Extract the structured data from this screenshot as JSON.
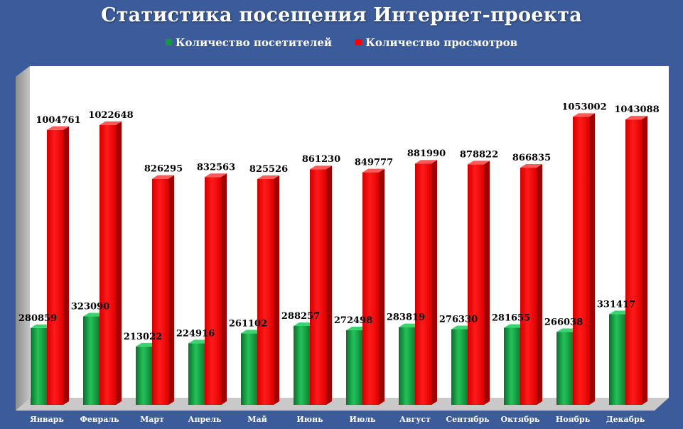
{
  "chart_data": {
    "type": "bar",
    "title": "Статистика посещения Интернет-проекта",
    "categories": [
      "Январь",
      "Февраль",
      "Март",
      "Апрель",
      "Май",
      "Июнь",
      "Июль",
      "Август",
      "Сентябрь",
      "Октябрь",
      "Ноябрь",
      "Декабрь"
    ],
    "series": [
      {
        "name": "Количество посетителей",
        "color": "#129a3c",
        "values": [
          280859,
          323090,
          213022,
          224916,
          261102,
          288257,
          272498,
          283819,
          276330,
          281655,
          266038,
          331417
        ]
      },
      {
        "name": "Количество просмотров",
        "color": "#ff0000",
        "values": [
          1004761,
          1022648,
          826295,
          832563,
          825526,
          861230,
          849777,
          881990,
          878822,
          866835,
          1053002,
          1043088
        ]
      }
    ],
    "ylim": [
      0,
      1220000
    ],
    "grid": false,
    "legend_position": "top",
    "data_labels": true
  },
  "colors": {
    "background": "#3b5b9b",
    "plot_wall": "#ffffff",
    "side_wall": "#a8a8a8",
    "floor": "#c8c8c8"
  }
}
